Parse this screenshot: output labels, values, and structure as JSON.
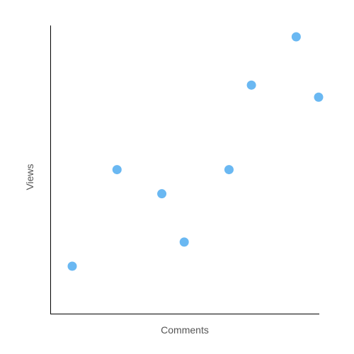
{
  "chart_data": {
    "type": "scatter",
    "title": "",
    "xlabel": "Comments",
    "ylabel": "Views",
    "point_color": "#6ab8f2",
    "grid": false,
    "legend": "none",
    "xlim": [
      0,
      12
    ],
    "ylim": [
      0,
      12
    ],
    "points": [
      {
        "x": 1,
        "y": 2
      },
      {
        "x": 3,
        "y": 6
      },
      {
        "x": 5,
        "y": 5
      },
      {
        "x": 6,
        "y": 3
      },
      {
        "x": 8,
        "y": 6
      },
      {
        "x": 9,
        "y": 9.5
      },
      {
        "x": 11,
        "y": 11.5
      },
      {
        "x": 12,
        "y": 9
      }
    ]
  }
}
